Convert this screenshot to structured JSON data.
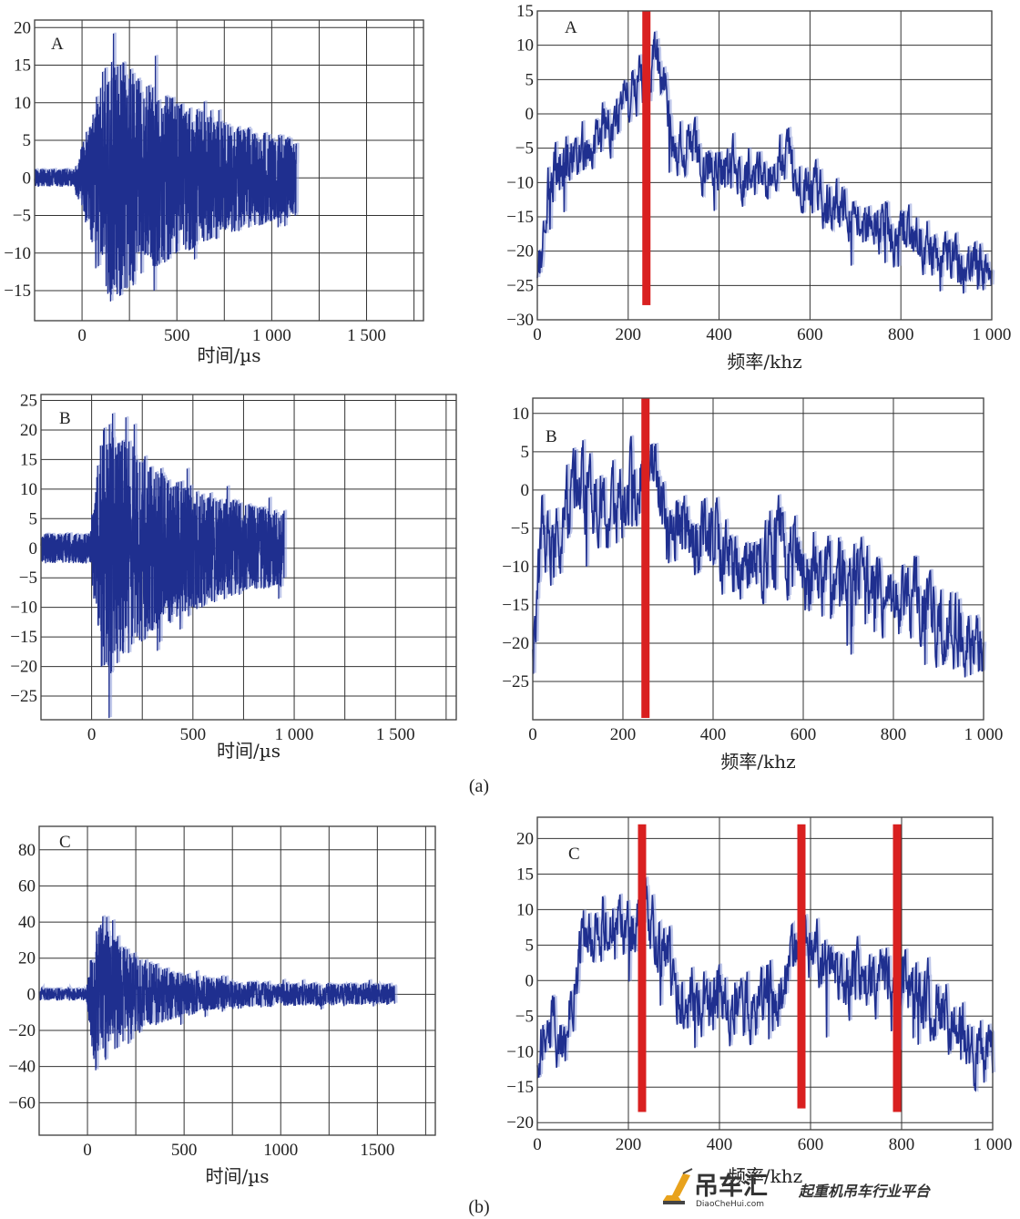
{
  "captions": [
    "(a)",
    "(b)"
  ],
  "watermark": {
    "brand": "吊车汇",
    "slogan": "起重机吊车行业平台",
    "url": "DiaoCheHui.com"
  },
  "chart_data": [
    {
      "type": "line",
      "panel": "A",
      "kind": "time",
      "xlabel": "时间/µs",
      "xlim": [
        -250,
        1800
      ],
      "ylim": [
        -19,
        21
      ],
      "xticks": [
        0,
        500,
        1000,
        1500
      ],
      "xtick_labels": [
        "0",
        "500",
        "1 000",
        "1 500"
      ],
      "yticks": [
        -15,
        -10,
        -5,
        0,
        5,
        10,
        15,
        20
      ],
      "ytick_labels": [
        "−15",
        "−10",
        "−5",
        "0",
        "5",
        "10",
        "15",
        "20"
      ],
      "signal": {
        "start": -250,
        "onset": -40,
        "end": 1130,
        "baseline_amp": 1.2,
        "peak_amp": 17,
        "peak_at": 150,
        "decay": 0.0017,
        "floor_amp": 2.5
      },
      "series_color": "#1f2f8f"
    },
    {
      "type": "line",
      "panel": "A",
      "kind": "freq",
      "xlabel": "频率/khz",
      "xlim": [
        0,
        1000
      ],
      "ylim": [
        -30,
        15
      ],
      "xticks": [
        0,
        200,
        400,
        600,
        800,
        1000
      ],
      "xtick_labels": [
        "0",
        "200",
        "400",
        "600",
        "800",
        "1 000"
      ],
      "yticks": [
        -30,
        -25,
        -20,
        -15,
        -10,
        -5,
        0,
        5,
        10,
        15
      ],
      "ytick_labels": [
        "−30",
        "−25",
        "−20",
        "−15",
        "−10",
        "−5",
        "0",
        "5",
        "10",
        "15"
      ],
      "envelope": [
        [
          0,
          -24
        ],
        [
          30,
          -8
        ],
        [
          100,
          -5
        ],
        [
          150,
          -2
        ],
        [
          200,
          2
        ],
        [
          240,
          6
        ],
        [
          260,
          9
        ],
        [
          300,
          -4
        ],
        [
          400,
          -8
        ],
        [
          500,
          -9
        ],
        [
          560,
          -7
        ],
        [
          600,
          -11
        ],
        [
          700,
          -15
        ],
        [
          800,
          -18
        ],
        [
          900,
          -21
        ],
        [
          1000,
          -24
        ]
      ],
      "noise": 3.2,
      "markers": [
        {
          "x": 240,
          "y_from": -28,
          "y_to": 15
        }
      ],
      "marker_color": "#d92020",
      "series_color": "#1f2f8f"
    },
    {
      "type": "line",
      "panel": "B",
      "kind": "time",
      "xlabel": "时间/µs",
      "xlim": [
        -250,
        1800
      ],
      "ylim": [
        -29,
        26
      ],
      "xticks": [
        0,
        500,
        1000,
        1500
      ],
      "xtick_labels": [
        "0",
        "500",
        "1 000",
        "1 500"
      ],
      "yticks": [
        -25,
        -20,
        -15,
        -10,
        -5,
        0,
        5,
        10,
        15,
        20,
        25
      ],
      "ytick_labels": [
        "−25",
        "−20",
        "−15",
        "−10",
        "−5",
        "0",
        "5",
        "10",
        "15",
        "20",
        "25"
      ],
      "signal": {
        "start": -250,
        "onset": -10,
        "end": 950,
        "baseline_amp": 2.6,
        "peak_amp": 23,
        "peak_at": 60,
        "decay": 0.0025,
        "floor_amp": 4.5
      },
      "series_color": "#1f2f8f"
    },
    {
      "type": "line",
      "panel": "B",
      "kind": "freq",
      "xlabel": "频率/khz",
      "xlim": [
        0,
        1000
      ],
      "ylim": [
        -30,
        12
      ],
      "xticks": [
        0,
        200,
        400,
        600,
        800,
        1000
      ],
      "xtick_labels": [
        "0",
        "200",
        "400",
        "600",
        "800",
        "1 000"
      ],
      "yticks": [
        -25,
        -20,
        -15,
        -10,
        -5,
        0,
        5,
        10
      ],
      "ytick_labels": [
        "−25",
        "−20",
        "−15",
        "−10",
        "−5",
        "0",
        "5",
        "10"
      ],
      "envelope": [
        [
          0,
          -22
        ],
        [
          20,
          -5
        ],
        [
          50,
          -8
        ],
        [
          100,
          2
        ],
        [
          130,
          -2
        ],
        [
          200,
          -3
        ],
        [
          240,
          3
        ],
        [
          270,
          2
        ],
        [
          300,
          -6
        ],
        [
          400,
          -6
        ],
        [
          450,
          -10
        ],
        [
          550,
          -7
        ],
        [
          600,
          -10
        ],
        [
          700,
          -12
        ],
        [
          800,
          -14
        ],
        [
          900,
          -17
        ],
        [
          1000,
          -20
        ]
      ],
      "noise": 4.0,
      "markers": [
        {
          "x": 250,
          "y_from": -30,
          "y_to": 12
        }
      ],
      "marker_color": "#d92020",
      "series_color": "#1f2f8f"
    },
    {
      "type": "line",
      "panel": "C",
      "kind": "time",
      "xlabel": "时间/µs",
      "xlim": [
        -250,
        1800
      ],
      "ylim": [
        -78,
        93
      ],
      "xticks": [
        0,
        500,
        1000,
        1500
      ],
      "xtick_labels": [
        "0",
        "500",
        "1000",
        "1500"
      ],
      "yticks": [
        -60,
        -40,
        -20,
        0,
        20,
        40,
        60,
        80
      ],
      "ytick_labels": [
        "−60",
        "−40",
        "−20",
        "0",
        "20",
        "40",
        "60",
        "80"
      ],
      "signal": {
        "start": -250,
        "onset": -5,
        "end": 1590,
        "baseline_amp": 3.5,
        "peak_amp": 45,
        "peak_at": 40,
        "decay": 0.004,
        "floor_amp": 6
      },
      "series_color": "#1f2f8f"
    },
    {
      "type": "line",
      "panel": "C",
      "kind": "freq",
      "xlabel": "频率/khz",
      "xlim": [
        0,
        1000
      ],
      "ylim": [
        -21,
        23
      ],
      "xticks": [
        0,
        200,
        400,
        600,
        800,
        1000
      ],
      "xtick_labels": [
        "0",
        "200",
        "400",
        "600",
        "800",
        "1 000"
      ],
      "yticks": [
        -20,
        -15,
        -10,
        -5,
        0,
        5,
        10,
        15,
        20
      ],
      "ytick_labels": [
        "−20",
        "−15",
        "−10",
        "−5",
        "0",
        "5",
        "10",
        "15",
        "20"
      ],
      "envelope": [
        [
          0,
          -14
        ],
        [
          20,
          -5
        ],
        [
          60,
          -10
        ],
        [
          100,
          5
        ],
        [
          150,
          8
        ],
        [
          200,
          7
        ],
        [
          240,
          10
        ],
        [
          280,
          3
        ],
        [
          320,
          -2
        ],
        [
          400,
          -3
        ],
        [
          480,
          -4
        ],
        [
          550,
          0
        ],
        [
          580,
          5
        ],
        [
          620,
          3
        ],
        [
          700,
          0
        ],
        [
          780,
          1
        ],
        [
          820,
          -1
        ],
        [
          900,
          -5
        ],
        [
          960,
          -11
        ],
        [
          1000,
          -8
        ]
      ],
      "noise": 3.6,
      "markers": [
        {
          "x": 230,
          "y_from": -18.5,
          "y_to": 22
        },
        {
          "x": 580,
          "y_from": -18,
          "y_to": 22
        },
        {
          "x": 790,
          "y_from": -18.5,
          "y_to": 22
        }
      ],
      "marker_color": "#d92020",
      "series_color": "#1f2f8f"
    }
  ]
}
